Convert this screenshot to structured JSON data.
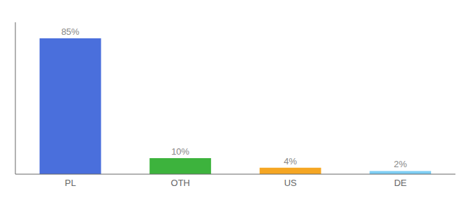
{
  "chart_data": {
    "type": "bar",
    "categories": [
      "PL",
      "OTH",
      "US",
      "DE"
    ],
    "values": [
      85,
      10,
      4,
      2
    ],
    "value_labels": [
      "85%",
      "10%",
      "4%",
      "2%"
    ],
    "colors": [
      "#4a6fdc",
      "#3db33d",
      "#f5a623",
      "#7ecef4"
    ],
    "ylim": [
      0,
      95
    ],
    "data_labels": true,
    "tick_labels": "x"
  }
}
